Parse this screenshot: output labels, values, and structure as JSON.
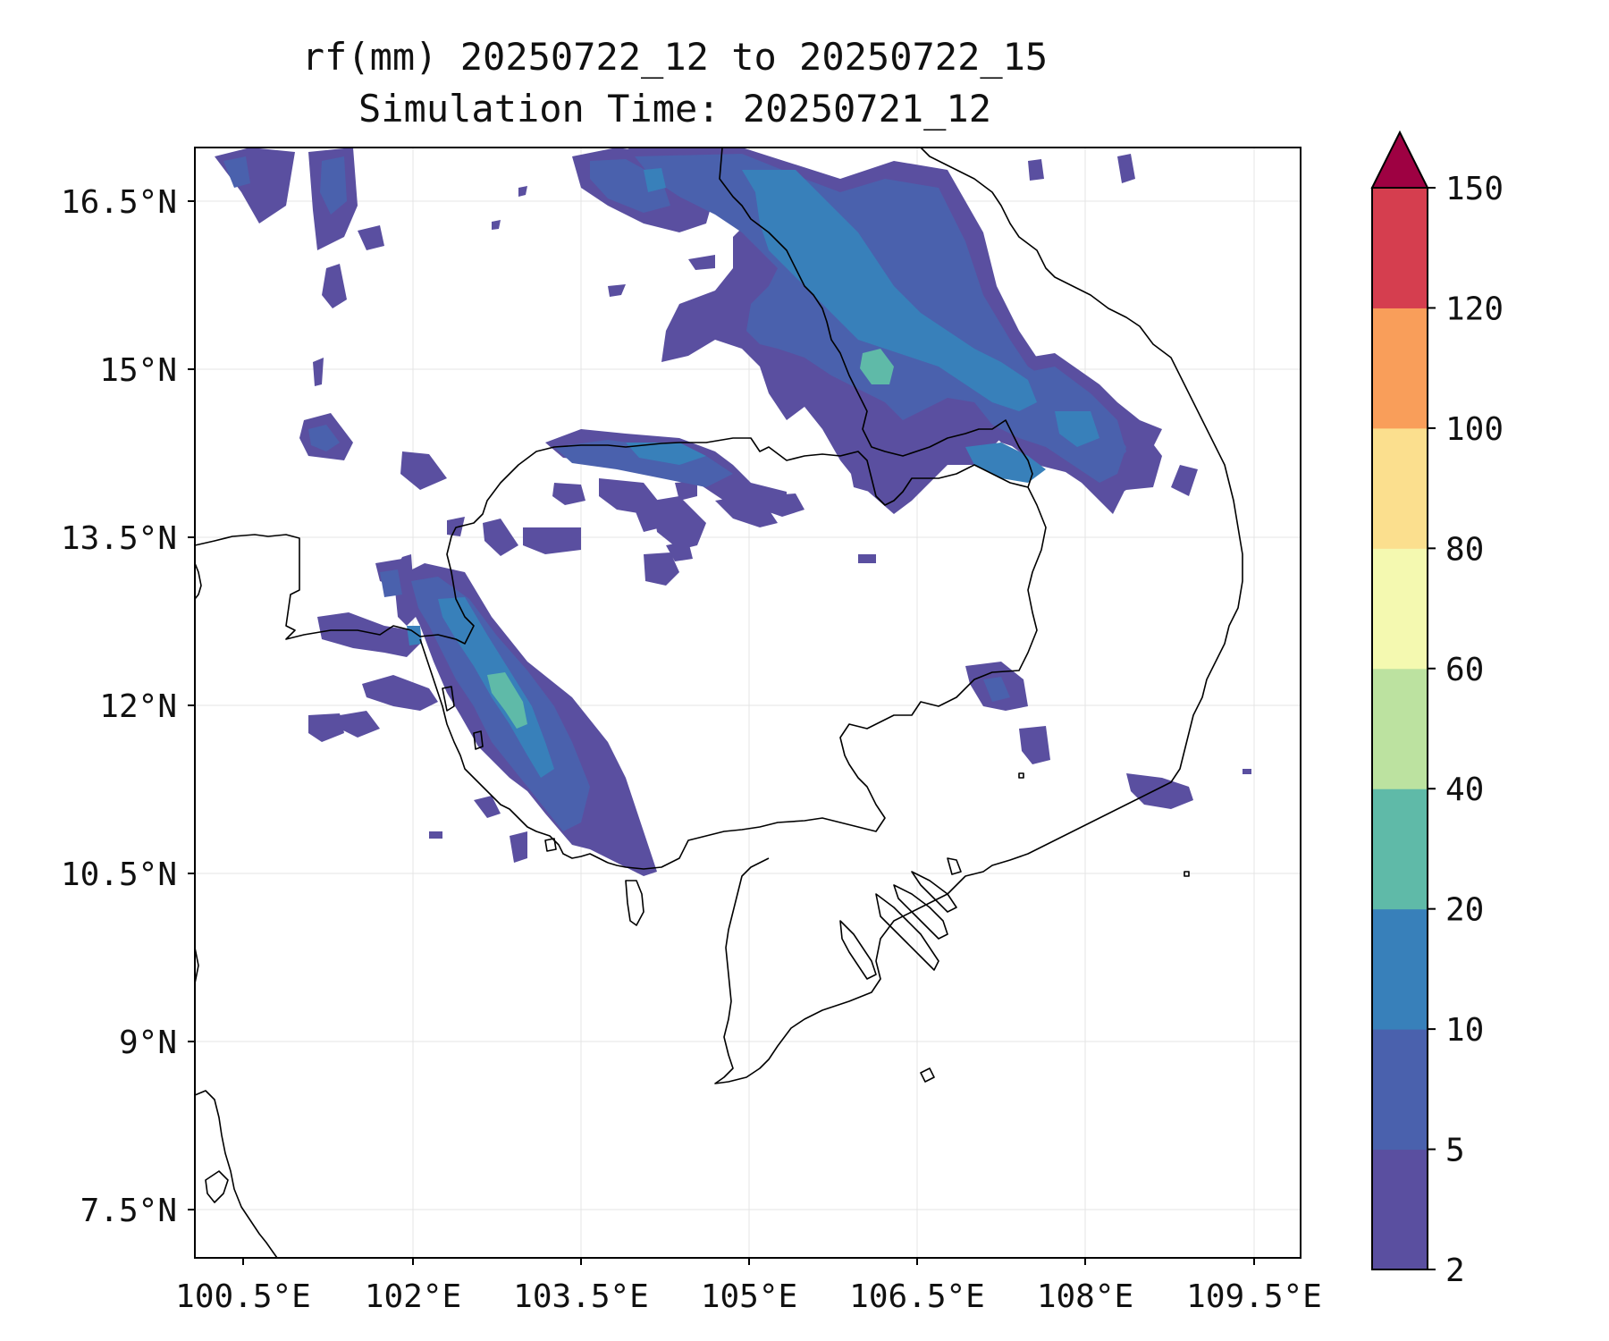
{
  "title": {
    "line1": "rf(mm) 20250722_12 to 20250722_15",
    "line2": "Simulation Time: 20250721_12"
  },
  "map": {
    "lon_range": [
      100.5,
      109.5
    ],
    "lat_range": [
      7.5,
      16.5
    ],
    "lon_ticks": [
      "100.5°E",
      "102°E",
      "103.5°E",
      "105°E",
      "106.5°E",
      "108°E",
      "109.5°E"
    ],
    "lat_ticks": [
      "16.5°N",
      "15°N",
      "13.5°N",
      "12°N",
      "10.5°N",
      "9°N",
      "7.5°N"
    ],
    "gridlines": true
  },
  "colorbar": {
    "levels": [
      "2",
      "5",
      "10",
      "20",
      "40",
      "60",
      "80",
      "100",
      "120",
      "150"
    ],
    "colors": [
      "#5a4fa0",
      "#4a61ad",
      "#3880ba",
      "#5fbaa8",
      "#bce2a0",
      "#f4f9b0",
      "#fbdf8e",
      "#f99e5a",
      "#d53e4f",
      "#9e0142"
    ],
    "extend": "max"
  },
  "rain_colors": {
    "l2": "#5a4fa0",
    "l5": "#4a61ad",
    "l10": "#3880ba",
    "l20": "#5fbaa8"
  }
}
